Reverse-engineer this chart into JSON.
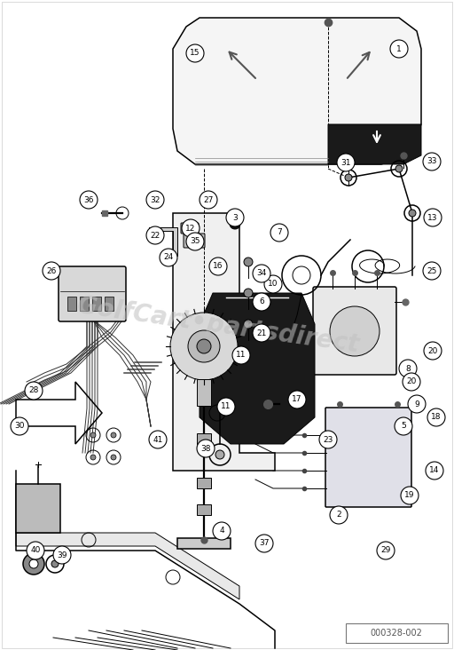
{
  "bg_color": "#ffffff",
  "line_color": "#000000",
  "watermark_text": "GolfCart•partsdirect",
  "watermark_color": "#c0c0c0",
  "diagram_id": "000328-002",
  "fig_width": 5.12,
  "fig_height": 7.32,
  "dpi": 100
}
